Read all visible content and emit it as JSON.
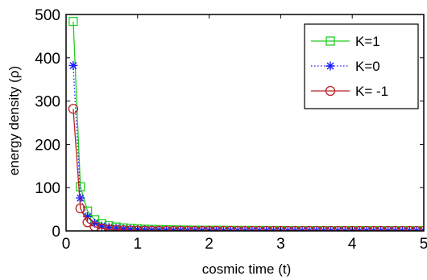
{
  "chart_data": {
    "type": "line",
    "title": "",
    "xlabel": "cosmic time (t)",
    "ylabel": "energy density (ρ)",
    "xlim": [
      0,
      5
    ],
    "ylim": [
      0,
      500
    ],
    "xticks": [
      "0",
      "1",
      "2",
      "3",
      "4",
      "5"
    ],
    "yticks": [
      "0",
      "100",
      "200",
      "300",
      "400",
      "500"
    ],
    "grid": false,
    "legend_position": "top-right",
    "x": [
      0.1,
      0.2,
      0.3,
      0.4,
      0.5,
      0.6,
      0.7,
      0.8,
      0.9,
      1.0,
      1.1,
      1.2,
      1.3,
      1.4,
      1.5,
      1.6,
      1.7,
      1.8,
      1.9,
      2.0,
      2.1,
      2.2,
      2.3,
      2.4,
      2.5,
      2.6,
      2.7,
      2.8,
      2.9,
      3.0,
      3.1,
      3.2,
      3.3,
      3.4,
      3.5,
      3.6,
      3.7,
      3.8,
      3.9,
      4.0,
      4.1,
      4.2,
      4.3,
      4.4,
      4.5,
      4.6,
      4.7,
      4.8,
      4.9,
      5.0
    ],
    "series": [
      {
        "name": "K=1",
        "color": "#22cc22",
        "line_style": "solid",
        "marker": "square",
        "values": [
          484,
          102,
          46,
          26,
          17,
          12,
          9,
          7,
          6,
          5,
          4,
          3.5,
          3,
          2.7,
          2.4,
          2.1,
          1.9,
          1.7,
          1.6,
          1.5,
          1.4,
          1.3,
          1.2,
          1.1,
          1.05,
          1,
          0.95,
          0.9,
          0.85,
          0.8,
          0.78,
          0.75,
          0.72,
          0.7,
          0.68,
          0.66,
          0.64,
          0.62,
          0.6,
          0.58,
          0.56,
          0.55,
          0.54,
          0.53,
          0.52,
          0.51,
          0.5,
          0.5,
          0.5,
          0.5
        ]
      },
      {
        "name": "K=0",
        "color": "#1a1aff",
        "line_style": "dotted",
        "marker": "star",
        "values": [
          382,
          76,
          33,
          18,
          11,
          8,
          6,
          4.5,
          3.5,
          2.8,
          2.3,
          1.9,
          1.6,
          1.4,
          1.2,
          1.05,
          0.9,
          0.8,
          0.72,
          0.65,
          0.6,
          0.55,
          0.5,
          0.46,
          0.42,
          0.39,
          0.36,
          0.34,
          0.32,
          0.3,
          0.28,
          0.26,
          0.25,
          0.24,
          0.23,
          0.22,
          0.21,
          0.2,
          0.19,
          0.18,
          0.17,
          0.16,
          0.16,
          0.15,
          0.15,
          0.14,
          0.14,
          0.13,
          0.13,
          0.12
        ]
      },
      {
        "name": "K= -1",
        "color": "#bb2222",
        "line_style": "solid",
        "marker": "circle",
        "values": [
          282,
          52,
          20,
          10,
          5.5,
          3.5,
          2.3,
          1.6,
          1.1,
          0.8,
          0.6,
          0.45,
          0.35,
          0.28,
          0.22,
          0.18,
          0.15,
          0.12,
          0.1,
          0.09,
          0.08,
          0.07,
          0.06,
          0.05,
          0.05,
          0.04,
          0.04,
          0.03,
          0.03,
          0.03,
          0.02,
          0.02,
          0.02,
          0.02,
          0.02,
          0.01,
          0.01,
          0.01,
          0.01,
          0.01,
          0.01,
          0.01,
          0.01,
          0.01,
          0.01,
          0.01,
          0.01,
          0.01,
          0.01,
          0.01
        ]
      }
    ]
  }
}
